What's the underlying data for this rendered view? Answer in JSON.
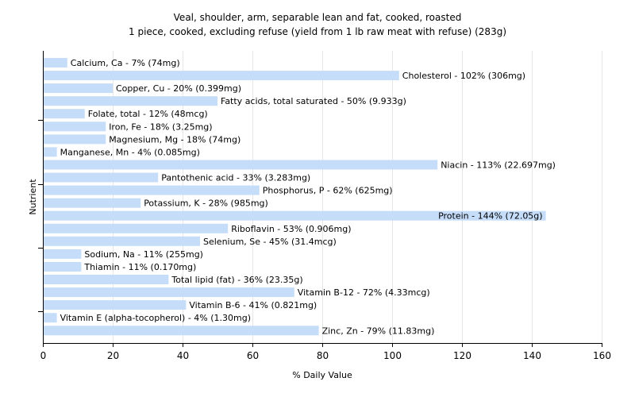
{
  "chart_data": {
    "type": "bar",
    "orientation": "horizontal",
    "title": "Veal, shoulder, arm, separable lean and fat, cooked, roasted",
    "subtitle": "1 piece, cooked, excluding refuse (yield from 1 lb raw meat with refuse) (283g)",
    "xlabel": "% Daily Value",
    "ylabel": "Nutrient",
    "xlim": [
      0,
      160
    ],
    "xticks": [
      0,
      20,
      40,
      60,
      80,
      100,
      120,
      140,
      160
    ],
    "grid": true,
    "bar_color": "#c6ddf9",
    "bars": [
      {
        "name": "Calcium, Ca",
        "value": 7,
        "label": "Calcium, Ca - 7% (74mg)"
      },
      {
        "name": "Cholesterol",
        "value": 102,
        "label": "Cholesterol - 102% (306mg)"
      },
      {
        "name": "Copper, Cu",
        "value": 20,
        "label": "Copper, Cu - 20% (0.399mg)"
      },
      {
        "name": "Fatty acids, total saturated",
        "value": 50,
        "label": "Fatty acids, total saturated - 50% (9.933g)"
      },
      {
        "name": "Folate, total",
        "value": 12,
        "label": "Folate, total - 12% (48mcg)"
      },
      {
        "name": "Iron, Fe",
        "value": 18,
        "label": "Iron, Fe - 18% (3.25mg)"
      },
      {
        "name": "Magnesium, Mg",
        "value": 18,
        "label": "Magnesium, Mg - 18% (74mg)"
      },
      {
        "name": "Manganese, Mn",
        "value": 4,
        "label": "Manganese, Mn - 4% (0.085mg)"
      },
      {
        "name": "Niacin",
        "value": 113,
        "label": "Niacin - 113% (22.697mg)"
      },
      {
        "name": "Pantothenic acid",
        "value": 33,
        "label": "Pantothenic acid - 33% (3.283mg)"
      },
      {
        "name": "Phosphorus, P",
        "value": 62,
        "label": "Phosphorus, P - 62% (625mg)"
      },
      {
        "name": "Potassium, K",
        "value": 28,
        "label": "Potassium, K - 28% (985mg)"
      },
      {
        "name": "Protein",
        "value": 144,
        "label": "Protein - 144% (72.05g)"
      },
      {
        "name": "Riboflavin",
        "value": 53,
        "label": "Riboflavin - 53% (0.906mg)"
      },
      {
        "name": "Selenium, Se",
        "value": 45,
        "label": "Selenium, Se - 45% (31.4mcg)"
      },
      {
        "name": "Sodium, Na",
        "value": 11,
        "label": "Sodium, Na - 11% (255mg)"
      },
      {
        "name": "Thiamin",
        "value": 11,
        "label": "Thiamin - 11% (0.170mg)"
      },
      {
        "name": "Total lipid (fat)",
        "value": 36,
        "label": "Total lipid (fat) - 36% (23.35g)"
      },
      {
        "name": "Vitamin B-12",
        "value": 72,
        "label": "Vitamin B-12 - 72% (4.33mcg)"
      },
      {
        "name": "Vitamin B-6",
        "value": 41,
        "label": "Vitamin B-6 - 41% (0.821mg)"
      },
      {
        "name": "Vitamin E (alpha-tocopherol)",
        "value": 4,
        "label": "Vitamin E (alpha-tocopherol) - 4% (1.30mg)"
      },
      {
        "name": "Zinc, Zn",
        "value": 79,
        "label": "Zinc, Zn - 79% (11.83mg)"
      }
    ]
  }
}
